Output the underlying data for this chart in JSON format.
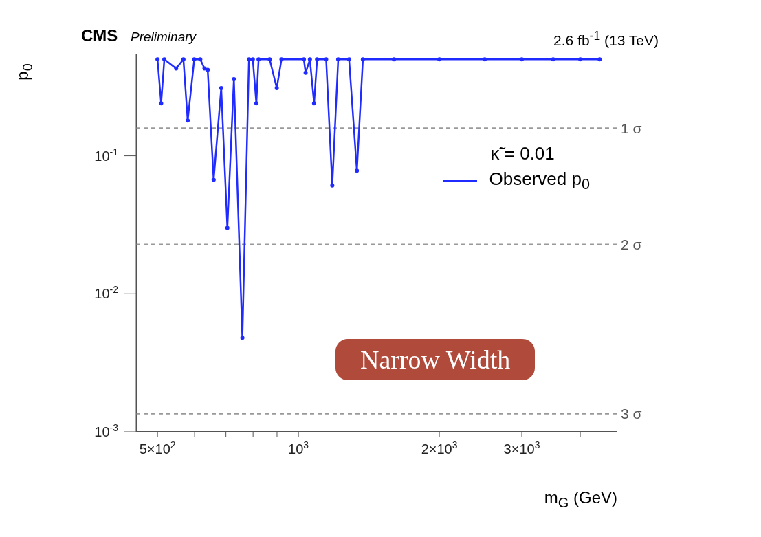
{
  "chart_data": {
    "type": "line",
    "title": "CMS",
    "subtitle": "Preliminary",
    "xlabel": "m$_{G}$ (GeV)",
    "ylabel": "p$_{0}$",
    "legend_title": "κ̃ = 0.01",
    "legend": "top right",
    "log": "xy",
    "marker": "circle",
    "line_style": "solid",
    "grid": false,
    "xlim": [
      450,
      4800
    ],
    "ylim": [
      0.001,
      0.55
    ],
    "xticks": [
      {
        "value": 500,
        "label": "5×10$^{2}$"
      },
      {
        "value": 600,
        "label": null
      },
      {
        "value": 700,
        "label": null
      },
      {
        "value": 800,
        "label": null
      },
      {
        "value": 900,
        "label": null
      },
      {
        "value": 1000,
        "label": "10$^{3}$"
      },
      {
        "value": 2000,
        "label": "2×10$^{3}$"
      },
      {
        "value": 3000,
        "label": "3×10$^{3}$"
      },
      {
        "value": 4000,
        "label": null
      }
    ],
    "yticks": [
      {
        "value": 0.001,
        "label": "10$^{-3}$"
      },
      {
        "value": 0.01,
        "label": "10$^{-2}$"
      },
      {
        "value": 0.1,
        "label": "10$^{-1}$"
      }
    ],
    "series": [
      {
        "name": "Observed p$_{0}$",
        "color": "#1f2bff",
        "x": [
          500,
          509,
          517,
          548,
          568,
          580,
          599,
          617,
          630,
          640,
          659,
          684,
          705,
          728,
          759,
          784,
          799,
          813,
          822,
          868,
          899,
          920,
          1027,
          1036,
          1058,
          1080,
          1096,
          1146,
          1181,
          1216,
          1283,
          1333,
          1373,
          1600,
          2000,
          2500,
          3000,
          3500,
          4000,
          4400
        ],
        "values": [
          0.5,
          0.24,
          0.5,
          0.43,
          0.5,
          0.18,
          0.5,
          0.5,
          0.43,
          0.42,
          0.067,
          0.31,
          0.03,
          0.36,
          0.0048,
          0.5,
          0.5,
          0.24,
          0.5,
          0.5,
          0.31,
          0.5,
          0.5,
          0.4,
          0.5,
          0.24,
          0.5,
          0.5,
          0.061,
          0.5,
          0.5,
          0.078,
          0.5,
          0.5,
          0.5,
          0.5,
          0.5,
          0.5,
          0.5,
          0.5
        ]
      }
    ],
    "ref_lines": [
      {
        "axis": "y",
        "value": 0.159,
        "label": "1 σ",
        "color": "#999999",
        "line_style": "dashed"
      },
      {
        "axis": "y",
        "value": 0.0228,
        "label": "2 σ",
        "color": "#999999",
        "line_style": "dashed"
      },
      {
        "axis": "y",
        "value": 0.00135,
        "label": "3 σ",
        "color": "#999999",
        "line_style": "dashed"
      }
    ],
    "annotations": [
      "2.6 fb$^{-1}$ (13 TeV)",
      "Narrow Width"
    ]
  }
}
